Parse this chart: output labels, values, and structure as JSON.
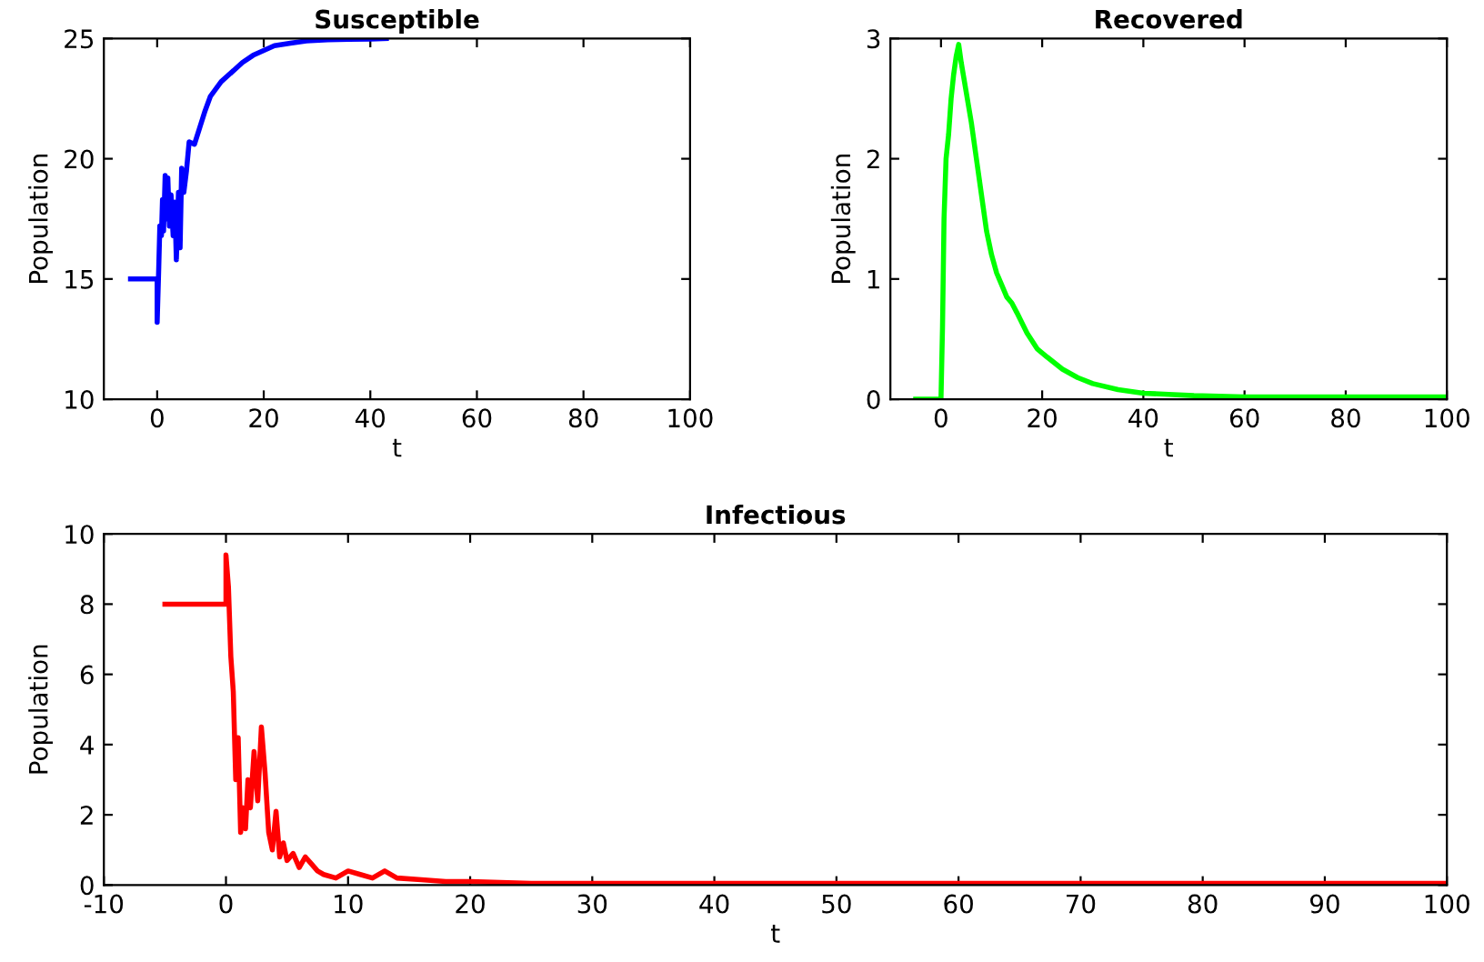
{
  "chart_data": [
    {
      "type": "line",
      "title": "Susceptible",
      "xlabel": "t",
      "ylabel": "Population",
      "xlim": [
        -10,
        100
      ],
      "ylim": [
        10,
        25
      ],
      "xticks": [
        0,
        20,
        40,
        60,
        80,
        100
      ],
      "yticks": [
        10,
        15,
        20,
        25
      ],
      "grid": false,
      "legend": false,
      "series": [
        {
          "color": "#0000ff",
          "x": [
            -5,
            0,
            0,
            0.3,
            0.5,
            0.8,
            1,
            1.2,
            1.5,
            1.8,
            2,
            2.3,
            2.6,
            3,
            3.3,
            3.6,
            4,
            4.3,
            4.6,
            5,
            5.5,
            6,
            7,
            8,
            9,
            10,
            12,
            14,
            16,
            18,
            20,
            22,
            25,
            28,
            32,
            36,
            40,
            43
          ],
          "values": [
            15,
            15,
            13.2,
            15.5,
            17.2,
            16.8,
            18.3,
            17,
            19.3,
            17.5,
            19.2,
            17.2,
            18.5,
            16.8,
            18.2,
            15.8,
            18.6,
            16.3,
            19.6,
            18.6,
            19.5,
            20.7,
            20.6,
            21.3,
            22,
            22.6,
            23.2,
            23.6,
            24,
            24.3,
            24.5,
            24.7,
            24.8,
            24.9,
            24.95,
            24.97,
            24.98,
            25
          ]
        }
      ]
    },
    {
      "type": "line",
      "title": "Recovered",
      "xlabel": "t",
      "ylabel": "Population",
      "xlim": [
        -10,
        100
      ],
      "ylim": [
        0,
        3
      ],
      "xticks": [
        0,
        20,
        40,
        60,
        80,
        100
      ],
      "yticks": [
        0,
        1,
        2,
        3
      ],
      "grid": false,
      "legend": false,
      "series": [
        {
          "color": "#00ff00",
          "x": [
            -5,
            0,
            0.3,
            0.6,
            1,
            1.5,
            2,
            2.5,
            3,
            3.5,
            4,
            5,
            6,
            7,
            8,
            9,
            10,
            11,
            12,
            13,
            14,
            15,
            17,
            19,
            21,
            24,
            27,
            30,
            35,
            40,
            45,
            50,
            60,
            70,
            80,
            90,
            100
          ],
          "values": [
            0,
            0,
            0.6,
            1.5,
            2.0,
            2.2,
            2.5,
            2.7,
            2.85,
            2.95,
            2.8,
            2.55,
            2.3,
            2.0,
            1.7,
            1.4,
            1.2,
            1.05,
            0.95,
            0.85,
            0.8,
            0.72,
            0.55,
            0.42,
            0.35,
            0.25,
            0.18,
            0.13,
            0.08,
            0.05,
            0.04,
            0.03,
            0.02,
            0.02,
            0.02,
            0.02,
            0.02
          ]
        }
      ]
    },
    {
      "type": "line",
      "title": "Infectious",
      "xlabel": "t",
      "ylabel": "Population",
      "xlim": [
        -10,
        100
      ],
      "ylim": [
        0,
        10
      ],
      "xticks": [
        -10,
        0,
        10,
        20,
        30,
        40,
        50,
        60,
        70,
        80,
        90,
        100
      ],
      "yticks": [
        0,
        2,
        4,
        6,
        8,
        10
      ],
      "grid": false,
      "legend": false,
      "series": [
        {
          "color": "#ff0000",
          "x": [
            -5,
            0,
            0,
            0.2,
            0.4,
            0.6,
            0.8,
            1,
            1.2,
            1.4,
            1.6,
            1.8,
            2,
            2.3,
            2.6,
            2.9,
            3.2,
            3.5,
            3.8,
            4.1,
            4.4,
            4.7,
            5,
            5.5,
            6,
            6.5,
            7,
            7.5,
            8,
            9,
            10,
            11,
            12,
            13,
            14,
            16,
            18,
            20,
            25,
            30,
            40,
            50,
            60,
            70,
            80,
            90,
            100
          ],
          "values": [
            8,
            8,
            9.4,
            8.5,
            6.5,
            5.5,
            3,
            4.2,
            1.5,
            2.2,
            1.6,
            3,
            2.2,
            3.8,
            2.4,
            4.5,
            3.2,
            1.5,
            1.0,
            2.1,
            0.8,
            1.2,
            0.7,
            0.9,
            0.5,
            0.8,
            0.6,
            0.4,
            0.3,
            0.2,
            0.4,
            0.3,
            0.2,
            0.4,
            0.2,
            0.15,
            0.1,
            0.1,
            0.05,
            0.05,
            0.05,
            0.05,
            0.05,
            0.05,
            0.05,
            0.05,
            0.05
          ]
        }
      ]
    }
  ]
}
